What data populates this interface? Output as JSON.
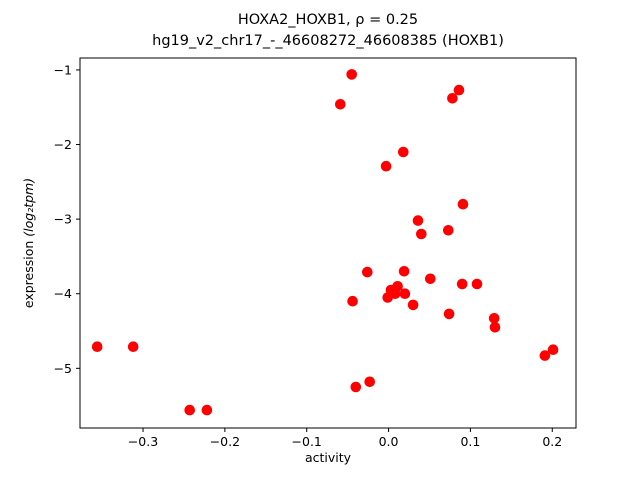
{
  "chart_data": {
    "type": "scatter",
    "title": "HOXA2_HOXB1, ρ = 0.25",
    "subtitle": "hg19_v2_chr17_-_46608272_46608385 (HOXB1)",
    "xlabel": "activity",
    "ylabel_plain": "expression ",
    "ylabel_math": "(log₂tpm)",
    "xlim": [
      -0.377,
      0.229
    ],
    "ylim": [
      -5.8,
      -0.84
    ],
    "x_ticks": [
      -0.3,
      -0.2,
      -0.1,
      0.0,
      0.1,
      0.2
    ],
    "x_tick_labels": [
      "−0.3",
      "−0.2",
      "−0.1",
      "0.0",
      "0.1",
      "0.2"
    ],
    "y_ticks": [
      -1,
      -2,
      -3,
      -4,
      -5
    ],
    "y_tick_labels": [
      "−1",
      "−2",
      "−3",
      "−4",
      "−5"
    ],
    "marker_color": "#ff0000",
    "marker_radius": 5.3,
    "legend": "none",
    "grid": false,
    "points": [
      [
        -0.356,
        -4.71
      ],
      [
        -0.312,
        -4.71
      ],
      [
        -0.243,
        -5.56
      ],
      [
        -0.222,
        -5.56
      ],
      [
        -0.059,
        -1.46
      ],
      [
        -0.045,
        -1.06
      ],
      [
        -0.044,
        -4.1
      ],
      [
        -0.04,
        -5.25
      ],
      [
        -0.023,
        -5.18
      ],
      [
        -0.026,
        -3.71
      ],
      [
        -0.003,
        -2.29
      ],
      [
        -0.001,
        -4.05
      ],
      [
        0.003,
        -3.95
      ],
      [
        0.008,
        -4.0
      ],
      [
        0.011,
        -3.9
      ],
      [
        0.018,
        -2.1
      ],
      [
        0.019,
        -3.7
      ],
      [
        0.02,
        -4.0
      ],
      [
        0.03,
        -4.15
      ],
      [
        0.036,
        -3.02
      ],
      [
        0.04,
        -3.2
      ],
      [
        0.051,
        -3.8
      ],
      [
        0.073,
        -3.15
      ],
      [
        0.074,
        -4.27
      ],
      [
        0.078,
        -1.38
      ],
      [
        0.086,
        -1.27
      ],
      [
        0.091,
        -2.8
      ],
      [
        0.09,
        -3.87
      ],
      [
        0.108,
        -3.87
      ],
      [
        0.129,
        -4.33
      ],
      [
        0.13,
        -4.45
      ],
      [
        0.191,
        -4.83
      ],
      [
        0.201,
        -4.75
      ]
    ]
  }
}
